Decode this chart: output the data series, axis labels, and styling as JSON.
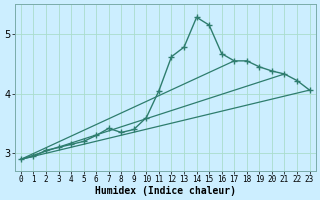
{
  "xlabel": "Humidex (Indice chaleur)",
  "bg_color": "#cceeff",
  "grid_color": "#aaddcc",
  "line_color": "#2e7d6e",
  "xlim": [
    -0.5,
    23.5
  ],
  "ylim": [
    2.7,
    5.5
  ],
  "yticks": [
    3,
    4,
    5
  ],
  "xticks": [
    0,
    1,
    2,
    3,
    4,
    5,
    6,
    7,
    8,
    9,
    10,
    11,
    12,
    13,
    14,
    15,
    16,
    17,
    18,
    19,
    20,
    21,
    22,
    23
  ],
  "main_series": {
    "x": [
      0,
      1,
      2,
      3,
      4,
      5,
      6,
      7,
      8,
      9,
      10,
      11,
      12,
      13,
      14,
      15,
      16,
      17,
      18,
      19,
      20,
      21,
      22,
      23
    ],
    "y": [
      2.9,
      2.95,
      3.05,
      3.1,
      3.15,
      3.2,
      3.3,
      3.42,
      3.35,
      3.4,
      3.6,
      4.05,
      4.62,
      4.78,
      5.28,
      5.15,
      4.67,
      4.55,
      4.55,
      4.45,
      4.38,
      4.33,
      4.22,
      4.06
    ]
  },
  "straight_lines": [
    {
      "x": [
        0,
        23
      ],
      "y": [
        2.9,
        4.06
      ]
    },
    {
      "x": [
        0,
        21
      ],
      "y": [
        2.9,
        4.33
      ]
    },
    {
      "x": [
        0,
        17
      ],
      "y": [
        2.9,
        4.55
      ]
    }
  ]
}
